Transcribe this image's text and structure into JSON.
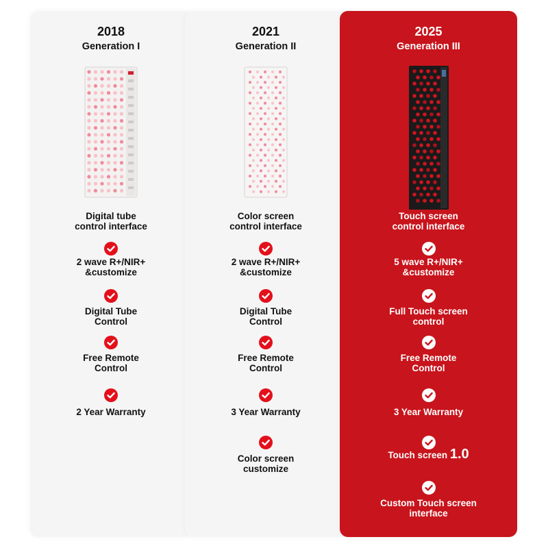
{
  "colors": {
    "accent_red": "#c8141c",
    "check_red": "#e3101b",
    "card_bg": "#f5f5f5"
  },
  "columns": [
    {
      "year": "2018",
      "generation": "Generation I",
      "image": "white-led-panel-gen1",
      "interface": "Digital tube\ncontrol interface",
      "features": [
        "2 wave R+/NIR+\n&customize",
        "Digital Tube\nControl",
        "Free Remote\nControl",
        "2 Year Warranty"
      ]
    },
    {
      "year": "2021",
      "generation": "Generation II",
      "image": "white-led-panel-gen2",
      "interface": "Color screen\ncontrol interface",
      "features": [
        "2 wave R+/NIR+\n&customize",
        "Digital Tube\nControl",
        "Free Remote\nControl",
        "3 Year Warranty",
        "Color screen\ncustomize"
      ]
    },
    {
      "year": "2025",
      "generation": "Generation III",
      "image": "black-led-panel-gen3",
      "interface": "Touch screen\ncontrol interface",
      "features": [
        "5 wave R+/NIR+\n&customize",
        "Full Touch screen\ncontrol",
        "Free Remote\nControl",
        "3 Year Warranty",
        "Touch screen",
        "Custom Touch screen\ninterface"
      ],
      "touch_version": "1.0"
    }
  ]
}
